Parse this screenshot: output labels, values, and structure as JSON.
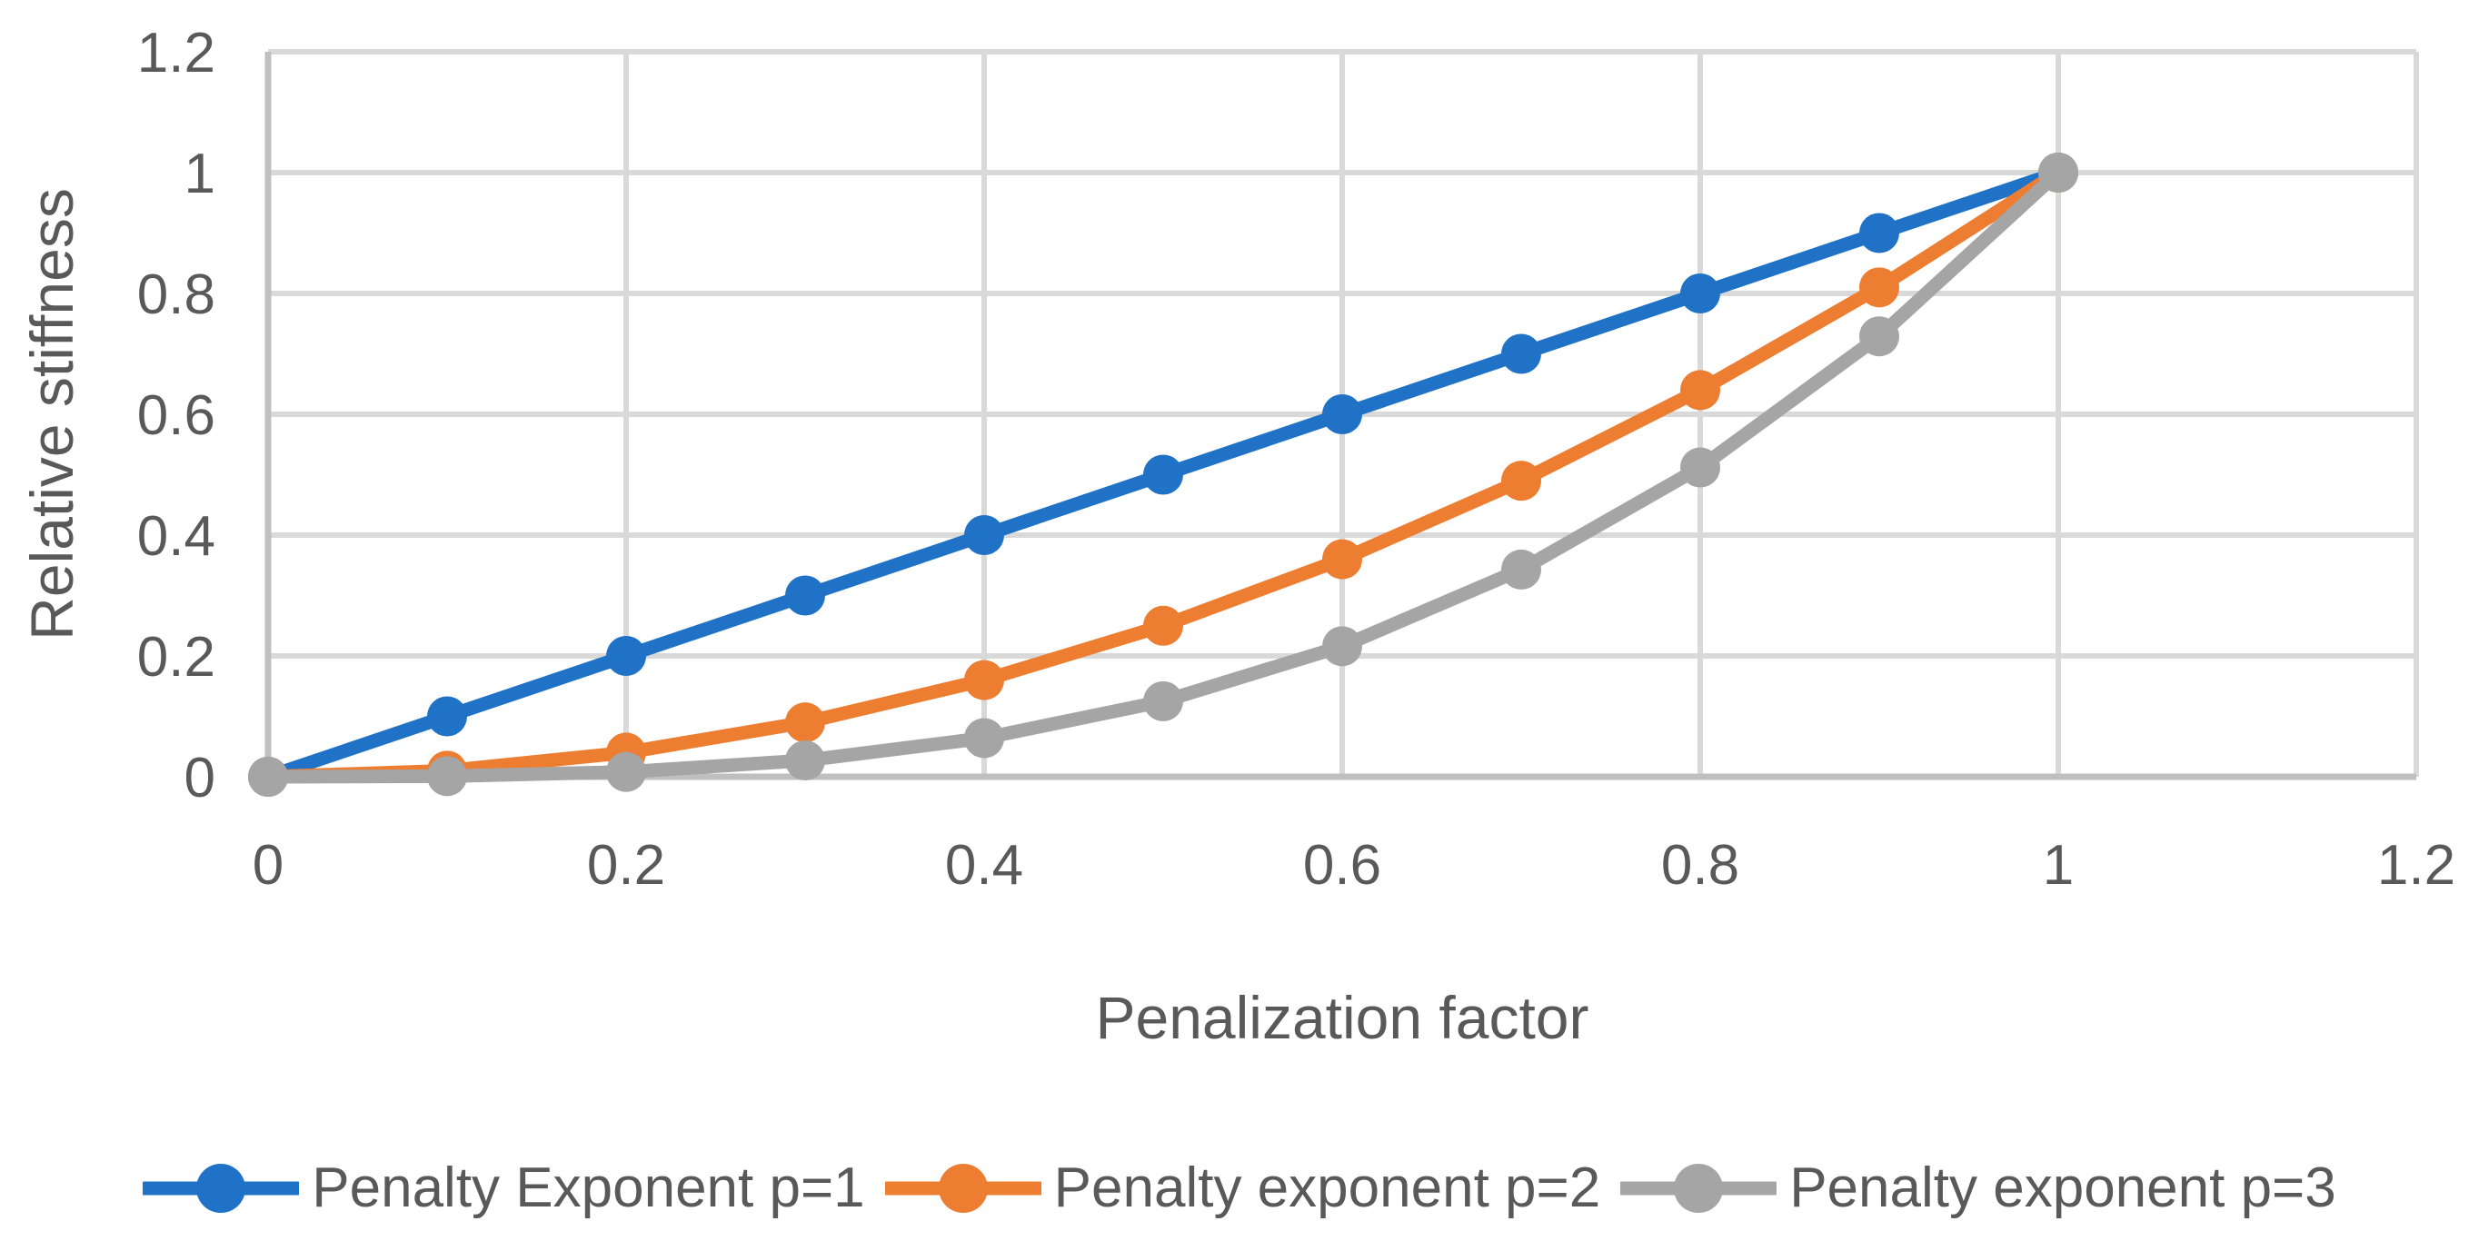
{
  "chart_data": {
    "type": "line",
    "title": "",
    "xlabel": "Penalization factor",
    "ylabel": "Relative stiffness",
    "x": [
      0,
      0.1,
      0.2,
      0.3,
      0.4,
      0.5,
      0.6,
      0.7,
      0.8,
      0.9,
      1
    ],
    "series": [
      {
        "name": "Penalty Exponent p=1",
        "color": "#1F72C6",
        "values": [
          0,
          0.1,
          0.2,
          0.3,
          0.4,
          0.5,
          0.6,
          0.7,
          0.8,
          0.9,
          1
        ]
      },
      {
        "name": "Penalty exponent p=2",
        "color": "#ED7D31",
        "values": [
          0,
          0.01,
          0.04,
          0.09,
          0.16,
          0.25,
          0.36,
          0.49,
          0.64,
          0.81,
          1
        ]
      },
      {
        "name": "Penalty exponent p=3",
        "color": "#A5A5A5",
        "values": [
          0,
          0.001,
          0.008,
          0.027,
          0.064,
          0.125,
          0.216,
          0.343,
          0.512,
          0.729,
          1
        ]
      }
    ],
    "x_ticks": [
      "0",
      "0.2",
      "0.4",
      "0.6",
      "0.8",
      "1",
      "1.2"
    ],
    "y_ticks": [
      "0",
      "0.2",
      "0.4",
      "0.6",
      "0.8",
      "1",
      "1.2"
    ],
    "xlim": [
      0,
      1.2
    ],
    "ylim": [
      0,
      1.2
    ],
    "grid": true,
    "legend_position": "bottom",
    "style_colors": {
      "tick_text": "#595959",
      "axis_line": "#BFBFBF",
      "gridline": "#D9D9D9",
      "background": "#FFFFFF"
    }
  }
}
